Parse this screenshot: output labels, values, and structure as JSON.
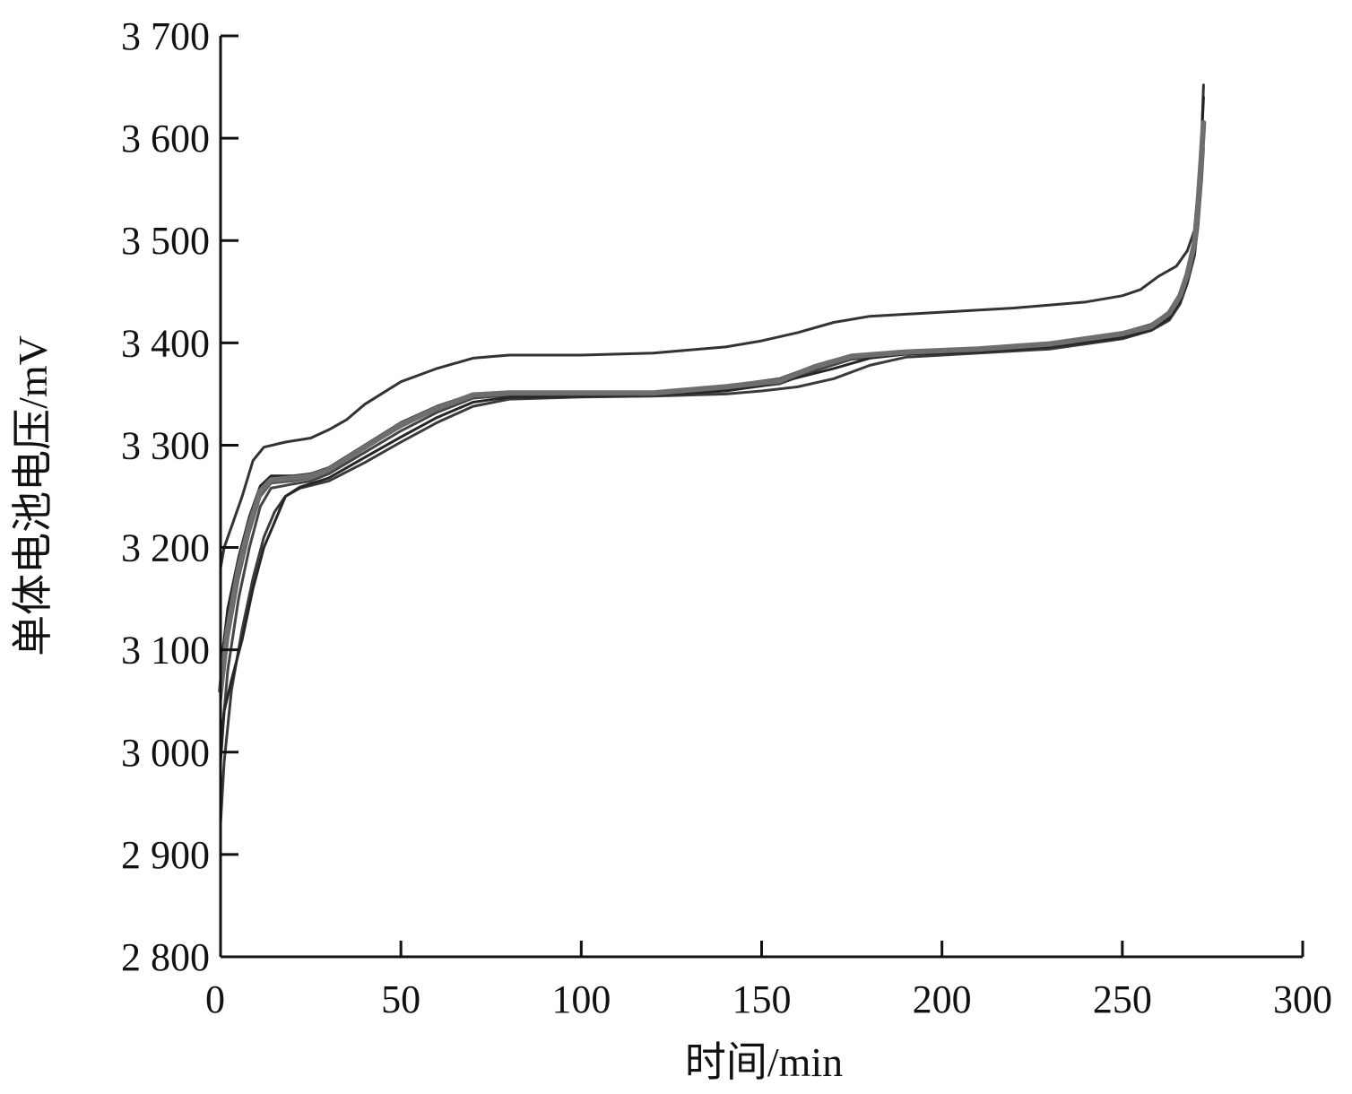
{
  "chart_data": {
    "type": "line",
    "title": "",
    "xlabel": "时间/min",
    "ylabel": "单体电池电压/mV",
    "xlim": [
      0,
      300
    ],
    "ylim": [
      2800,
      3700
    ],
    "xticks": [
      0,
      50,
      100,
      150,
      200,
      250,
      300
    ],
    "yticks": [
      2800,
      2900,
      3000,
      3100,
      3200,
      3300,
      3400,
      3500,
      3600,
      3700
    ],
    "ytick_labels": [
      "2 800",
      "2 900",
      "3 000",
      "3 100",
      "3 200",
      "3 300",
      "3 400",
      "3 500",
      "3 600",
      "3 700"
    ],
    "xtick_labels": [
      "0",
      "50",
      "100",
      "150",
      "200",
      "250",
      "300"
    ],
    "grid": false,
    "legend": "none",
    "series": [
      {
        "color": "#333333",
        "width": 3,
        "points": [
          [
            0,
            3180
          ],
          [
            1,
            3200
          ],
          [
            3,
            3220
          ],
          [
            6,
            3250
          ],
          [
            9,
            3285
          ],
          [
            12,
            3298
          ],
          [
            18,
            3303
          ],
          [
            25,
            3307
          ],
          [
            30,
            3315
          ],
          [
            35,
            3325
          ],
          [
            40,
            3340
          ],
          [
            50,
            3362
          ],
          [
            60,
            3375
          ],
          [
            70,
            3385
          ],
          [
            80,
            3388
          ],
          [
            100,
            3388
          ],
          [
            120,
            3390
          ],
          [
            140,
            3396
          ],
          [
            150,
            3402
          ],
          [
            160,
            3410
          ],
          [
            170,
            3420
          ],
          [
            180,
            3426
          ],
          [
            200,
            3430
          ],
          [
            220,
            3434
          ],
          [
            240,
            3440
          ],
          [
            250,
            3446
          ],
          [
            255,
            3452
          ],
          [
            260,
            3465
          ],
          [
            265,
            3475
          ],
          [
            268,
            3490
          ],
          [
            270,
            3510
          ],
          [
            271,
            3550
          ],
          [
            272,
            3600
          ],
          [
            272.5,
            3652
          ]
        ]
      },
      {
        "color": "#222222",
        "width": 3,
        "points": [
          [
            0,
            3080
          ],
          [
            2,
            3140
          ],
          [
            5,
            3190
          ],
          [
            8,
            3230
          ],
          [
            11,
            3260
          ],
          [
            14,
            3270
          ],
          [
            20,
            3270
          ],
          [
            25,
            3272
          ],
          [
            30,
            3278
          ],
          [
            40,
            3300
          ],
          [
            50,
            3322
          ],
          [
            60,
            3338
          ],
          [
            70,
            3350
          ],
          [
            80,
            3352
          ],
          [
            100,
            3352
          ],
          [
            120,
            3352
          ],
          [
            140,
            3358
          ],
          [
            155,
            3365
          ],
          [
            165,
            3378
          ],
          [
            175,
            3388
          ],
          [
            190,
            3392
          ],
          [
            210,
            3394
          ],
          [
            230,
            3400
          ],
          [
            250,
            3410
          ],
          [
            258,
            3418
          ],
          [
            263,
            3430
          ],
          [
            266,
            3448
          ],
          [
            268,
            3470
          ],
          [
            270,
            3500
          ],
          [
            271,
            3540
          ],
          [
            272,
            3600
          ],
          [
            272.5,
            3640
          ]
        ]
      },
      {
        "color": "#555555",
        "width": 3,
        "points": [
          [
            0,
            3050
          ],
          [
            2,
            3110
          ],
          [
            5,
            3170
          ],
          [
            8,
            3215
          ],
          [
            11,
            3250
          ],
          [
            14,
            3263
          ],
          [
            20,
            3265
          ],
          [
            25,
            3268
          ],
          [
            30,
            3275
          ],
          [
            40,
            3297
          ],
          [
            50,
            3318
          ],
          [
            60,
            3335
          ],
          [
            70,
            3348
          ],
          [
            80,
            3350
          ],
          [
            100,
            3350
          ],
          [
            120,
            3351
          ],
          [
            140,
            3356
          ],
          [
            155,
            3362
          ],
          [
            165,
            3376
          ],
          [
            175,
            3386
          ],
          [
            190,
            3390
          ],
          [
            210,
            3393
          ],
          [
            230,
            3398
          ],
          [
            250,
            3408
          ],
          [
            258,
            3415
          ],
          [
            263,
            3428
          ],
          [
            266,
            3445
          ],
          [
            268,
            3465
          ],
          [
            270,
            3495
          ],
          [
            271,
            3530
          ],
          [
            272,
            3580
          ],
          [
            272.5,
            3610
          ]
        ]
      },
      {
        "color": "#444444",
        "width": 3,
        "points": [
          [
            0,
            3000
          ],
          [
            2,
            3080
          ],
          [
            5,
            3150
          ],
          [
            8,
            3200
          ],
          [
            11,
            3240
          ],
          [
            14,
            3258
          ],
          [
            20,
            3262
          ],
          [
            25,
            3265
          ],
          [
            30,
            3272
          ],
          [
            40,
            3293
          ],
          [
            50,
            3314
          ],
          [
            60,
            3332
          ],
          [
            70,
            3346
          ],
          [
            80,
            3349
          ],
          [
            100,
            3349
          ],
          [
            120,
            3350
          ],
          [
            140,
            3354
          ],
          [
            155,
            3360
          ],
          [
            165,
            3373
          ],
          [
            175,
            3384
          ],
          [
            190,
            3389
          ],
          [
            210,
            3392
          ],
          [
            230,
            3397
          ],
          [
            250,
            3406
          ],
          [
            258,
            3414
          ],
          [
            263,
            3426
          ],
          [
            266,
            3442
          ],
          [
            268,
            3462
          ],
          [
            270,
            3490
          ],
          [
            271,
            3520
          ],
          [
            272,
            3570
          ],
          [
            272.5,
            3600
          ]
        ]
      },
      {
        "color": "#3a3a3a",
        "width": 3,
        "points": [
          [
            0,
            2930
          ],
          [
            1,
            2990
          ],
          [
            3,
            3060
          ],
          [
            6,
            3120
          ],
          [
            9,
            3170
          ],
          [
            12,
            3210
          ],
          [
            15,
            3235
          ],
          [
            18,
            3250
          ],
          [
            22,
            3258
          ],
          [
            30,
            3265
          ],
          [
            40,
            3283
          ],
          [
            50,
            3303
          ],
          [
            60,
            3322
          ],
          [
            70,
            3338
          ],
          [
            80,
            3345
          ],
          [
            100,
            3347
          ],
          [
            120,
            3348
          ],
          [
            140,
            3350
          ],
          [
            150,
            3353
          ],
          [
            160,
            3357
          ],
          [
            170,
            3365
          ],
          [
            180,
            3378
          ],
          [
            190,
            3386
          ],
          [
            210,
            3390
          ],
          [
            230,
            3394
          ],
          [
            250,
            3404
          ],
          [
            258,
            3412
          ],
          [
            263,
            3422
          ],
          [
            266,
            3438
          ],
          [
            268,
            3458
          ],
          [
            270,
            3485
          ],
          [
            271,
            3515
          ],
          [
            272,
            3560
          ],
          [
            272.5,
            3590
          ]
        ]
      },
      {
        "color": "#262626",
        "width": 3,
        "points": [
          [
            0,
            2990
          ],
          [
            1,
            3040
          ],
          [
            3,
            3070
          ],
          [
            6,
            3110
          ],
          [
            9,
            3160
          ],
          [
            12,
            3200
          ],
          [
            15,
            3225
          ],
          [
            18,
            3250
          ],
          [
            22,
            3259
          ],
          [
            30,
            3268
          ],
          [
            40,
            3288
          ],
          [
            50,
            3308
          ],
          [
            60,
            3327
          ],
          [
            70,
            3342
          ],
          [
            80,
            3347
          ],
          [
            100,
            3348
          ],
          [
            120,
            3349
          ],
          [
            140,
            3353
          ],
          [
            150,
            3358
          ],
          [
            160,
            3366
          ],
          [
            170,
            3375
          ],
          [
            180,
            3385
          ],
          [
            190,
            3389
          ],
          [
            210,
            3391
          ],
          [
            230,
            3396
          ],
          [
            250,
            3405
          ],
          [
            258,
            3413
          ],
          [
            263,
            3424
          ],
          [
            266,
            3440
          ],
          [
            268,
            3460
          ],
          [
            270,
            3488
          ],
          [
            271,
            3525
          ],
          [
            272,
            3575
          ],
          [
            272.5,
            3605
          ]
        ]
      },
      {
        "color": "#6e6e6e",
        "width": 6,
        "points": [
          [
            0,
            3060
          ],
          [
            2,
            3120
          ],
          [
            5,
            3180
          ],
          [
            8,
            3222
          ],
          [
            11,
            3255
          ],
          [
            14,
            3266
          ],
          [
            20,
            3268
          ],
          [
            25,
            3270
          ],
          [
            30,
            3276
          ],
          [
            40,
            3298
          ],
          [
            50,
            3320
          ],
          [
            60,
            3336
          ],
          [
            70,
            3349
          ],
          [
            80,
            3351
          ],
          [
            100,
            3351
          ],
          [
            120,
            3351
          ],
          [
            140,
            3357
          ],
          [
            155,
            3363
          ],
          [
            165,
            3377
          ],
          [
            175,
            3387
          ],
          [
            190,
            3391
          ],
          [
            210,
            3394
          ],
          [
            230,
            3399
          ],
          [
            250,
            3409
          ],
          [
            258,
            3416
          ],
          [
            263,
            3429
          ],
          [
            266,
            3446
          ],
          [
            268,
            3467
          ],
          [
            270,
            3497
          ],
          [
            271,
            3535
          ],
          [
            272,
            3585
          ],
          [
            272.5,
            3615
          ]
        ]
      }
    ]
  }
}
